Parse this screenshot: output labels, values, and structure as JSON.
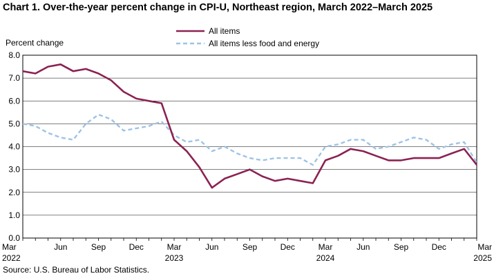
{
  "chart_data": {
    "type": "line",
    "title": "Chart 1. Over-the-year percent change in CPI-U, Northeast region, March 2022–March 2025",
    "ylabel": "Percent change",
    "xlabel": "",
    "ylim": [
      0.0,
      8.0
    ],
    "yticks": [
      "0.0",
      "1.0",
      "2.0",
      "3.0",
      "4.0",
      "5.0",
      "6.0",
      "7.0",
      "8.0"
    ],
    "xtick_labels": [
      {
        "index": 0,
        "month": "Mar",
        "year": "2022"
      },
      {
        "index": 3,
        "month": "Jun",
        "year": ""
      },
      {
        "index": 6,
        "month": "Sep",
        "year": ""
      },
      {
        "index": 9,
        "month": "Dec",
        "year": ""
      },
      {
        "index": 12,
        "month": "Mar",
        "year": "2023"
      },
      {
        "index": 15,
        "month": "Jun",
        "year": ""
      },
      {
        "index": 18,
        "month": "Sep",
        "year": ""
      },
      {
        "index": 21,
        "month": "Dec",
        "year": ""
      },
      {
        "index": 24,
        "month": "Mar",
        "year": "2024"
      },
      {
        "index": 27,
        "month": "Jun",
        "year": ""
      },
      {
        "index": 30,
        "month": "Sep",
        "year": ""
      },
      {
        "index": 33,
        "month": "Dec",
        "year": ""
      },
      {
        "index": 36,
        "month": "Mar",
        "year": "2025"
      }
    ],
    "x_count": 37,
    "legend_position": "top-center",
    "series": [
      {
        "name": "All items",
        "color": "#8b2252",
        "style": "solid",
        "values": [
          7.3,
          7.2,
          7.5,
          7.6,
          7.3,
          7.4,
          7.2,
          6.9,
          6.4,
          6.1,
          6.0,
          5.9,
          4.3,
          3.8,
          3.1,
          2.2,
          2.6,
          2.8,
          3.0,
          2.7,
          2.5,
          2.6,
          2.5,
          2.4,
          3.4,
          3.6,
          3.9,
          3.8,
          3.6,
          3.4,
          3.4,
          3.5,
          3.5,
          3.5,
          3.7,
          3.9,
          3.2
        ]
      },
      {
        "name": "All items less food and energy",
        "color": "#9dc3e6",
        "style": "dashed",
        "values": [
          5.0,
          4.9,
          4.6,
          4.4,
          4.3,
          5.0,
          5.4,
          5.2,
          4.7,
          4.8,
          4.9,
          5.1,
          4.5,
          4.2,
          4.3,
          3.8,
          4.0,
          3.7,
          3.5,
          3.4,
          3.5,
          3.5,
          3.5,
          3.2,
          4.0,
          4.1,
          4.3,
          4.3,
          3.9,
          4.0,
          4.2,
          4.4,
          4.3,
          3.9,
          4.1,
          4.2,
          3.3
        ]
      }
    ]
  },
  "source": "Source: U.S. Bureau of Labor Statistics."
}
